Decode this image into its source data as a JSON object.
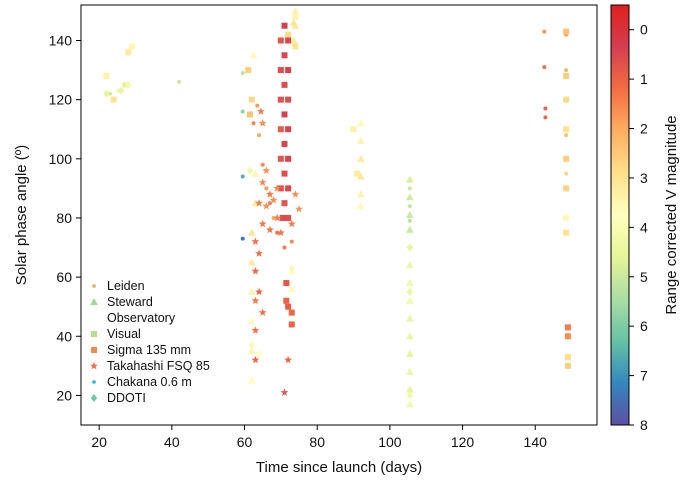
{
  "chart_data": {
    "type": "scatter",
    "xlabel": "Time since launch (days)",
    "ylabel": "Solar phase angle (º)",
    "xlim": [
      15,
      157
    ],
    "ylim": [
      10,
      152
    ],
    "xticks": [
      "20",
      "40",
      "60",
      "80",
      "100",
      "120",
      "140"
    ],
    "yticks": [
      "20",
      "40",
      "60",
      "80",
      "100",
      "120",
      "140"
    ],
    "grid": false,
    "legend_position": "lower-left",
    "colorbar": {
      "label": "Range corrected V magnitude",
      "ticks": [
        "0",
        "1",
        "2",
        "3",
        "4",
        "5",
        "6",
        "7",
        "8"
      ],
      "range": [
        -0.5,
        8
      ],
      "reversed": true,
      "colormap": "Spectral"
    },
    "series": [
      {
        "name": "Leiden",
        "marker": "dot",
        "points": [
          [
            62.5,
            112,
            1.5
          ],
          [
            63.5,
            118,
            1.8
          ],
          [
            64,
            108,
            2
          ],
          [
            65,
            98,
            1.6
          ],
          [
            66,
            90,
            1.8
          ],
          [
            67,
            85,
            1.5
          ],
          [
            68,
            80,
            2
          ],
          [
            69,
            75,
            1.2
          ],
          [
            71,
            70,
            1.4
          ],
          [
            73,
            72,
            1.6
          ],
          [
            142.5,
            143,
            1.7
          ],
          [
            142.5,
            131,
            1.2
          ],
          [
            142.8,
            117,
            1.0
          ],
          [
            142.8,
            114,
            1.1
          ],
          [
            148.5,
            142,
            1.8
          ],
          [
            148.5,
            130,
            2.2
          ],
          [
            148.5,
            108,
            2.4
          ],
          [
            148.5,
            95,
            2.7
          ]
        ]
      },
      {
        "name": "Steward\nObservatory",
        "marker": "triangle",
        "points": [
          [
            62,
            25,
            3.8
          ],
          [
            62,
            35,
            3.5
          ],
          [
            62,
            45,
            3.6
          ],
          [
            62,
            55,
            3.4
          ],
          [
            62,
            65,
            3.2
          ],
          [
            62,
            75,
            3.0
          ],
          [
            62.5,
            135,
            3.6
          ],
          [
            63,
            85,
            3.2
          ],
          [
            63,
            95,
            3.5
          ],
          [
            73.5,
            140,
            3.2
          ],
          [
            73.5,
            146,
            3.0
          ],
          [
            74,
            150,
            3.4
          ],
          [
            74,
            145,
            3.1
          ],
          [
            92,
            112,
            3.6
          ],
          [
            92,
            106,
            3.4
          ],
          [
            92,
            100,
            3.2
          ],
          [
            92,
            94,
            3.1
          ],
          [
            92,
            88,
            3.4
          ],
          [
            92,
            84,
            3.6
          ],
          [
            105.5,
            64,
            4.4
          ],
          [
            105.5,
            58,
            4.2
          ],
          [
            105.5,
            52,
            4.3
          ],
          [
            105.5,
            46,
            4.5
          ],
          [
            105.5,
            40,
            4.4
          ],
          [
            105.5,
            34,
            4.6
          ],
          [
            105.5,
            28,
            4.5
          ],
          [
            105.5,
            22,
            4.6
          ],
          [
            105.5,
            17,
            4.2
          ],
          [
            105.5,
            93,
            4.8
          ],
          [
            105.5,
            87,
            4.9
          ],
          [
            105.5,
            81,
            5.0
          ],
          [
            105.5,
            76,
            5.0
          ],
          [
            73,
            56,
            3.9
          ],
          [
            73,
            62,
            3.8
          ]
        ]
      },
      {
        "name": "Visual",
        "marker": "square",
        "points": [
          [
            22,
            128,
            3.4
          ],
          [
            24,
            120,
            3.0
          ],
          [
            27,
            125,
            3.6
          ],
          [
            28,
            136,
            3.2
          ],
          [
            29,
            138,
            3.5
          ],
          [
            61,
            130,
            2.6
          ],
          [
            62,
            120,
            2.8
          ],
          [
            61.5,
            115,
            2.4
          ],
          [
            148.5,
            143,
            2.4
          ],
          [
            148.5,
            128,
            2.6
          ],
          [
            148.5,
            120,
            2.8
          ],
          [
            148.5,
            110,
            3.0
          ],
          [
            148.5,
            100,
            2.6
          ],
          [
            148.5,
            90,
            2.7
          ],
          [
            148.5,
            80,
            3.6
          ],
          [
            148.5,
            75,
            3.0
          ],
          [
            149,
            30,
            2.6
          ],
          [
            149,
            33,
            2.9
          ],
          [
            90,
            110,
            3.4
          ],
          [
            91,
            95,
            3.2
          ],
          [
            74,
            148,
            3.4
          ],
          [
            74,
            138,
            3.0
          ],
          [
            72,
            142,
            2.8
          ]
        ]
      },
      {
        "name": "Sigma 135 mm",
        "marker": "square",
        "points": [
          [
            70,
            140,
            0.8
          ],
          [
            70,
            130,
            0.6
          ],
          [
            70,
            120,
            0.7
          ],
          [
            70,
            110,
            0.9
          ],
          [
            70,
            100,
            0.8
          ],
          [
            70,
            90,
            0.7
          ],
          [
            70.5,
            80,
            0.6
          ],
          [
            71,
            145,
            0.4
          ],
          [
            71,
            135,
            0.5
          ],
          [
            71,
            125,
            0.6
          ],
          [
            71,
            115,
            0.4
          ],
          [
            71,
            105,
            0.5
          ],
          [
            71,
            95,
            0.6
          ],
          [
            71,
            85,
            0.7
          ],
          [
            72,
            140,
            0.5
          ],
          [
            72,
            130,
            0.4
          ],
          [
            72,
            120,
            0.6
          ],
          [
            72,
            110,
            0.5
          ],
          [
            72,
            100,
            0.4
          ],
          [
            72,
            90,
            0.5
          ],
          [
            72,
            80,
            0.6
          ],
          [
            71.5,
            58,
            0.8
          ],
          [
            71.5,
            52,
            1.0
          ],
          [
            72,
            50,
            0.9
          ],
          [
            73,
            44,
            1.0
          ],
          [
            73,
            48,
            1.1
          ],
          [
            149,
            43,
            1.4
          ],
          [
            149,
            40,
            1.6
          ]
        ]
      },
      {
        "name": "Takahashi FSQ 85",
        "marker": "star",
        "points": [
          [
            63,
            72,
            1.2
          ],
          [
            63,
            62,
            1.1
          ],
          [
            63,
            52,
            1.3
          ],
          [
            63,
            42,
            1.2
          ],
          [
            63,
            32,
            1.0
          ],
          [
            64,
            85,
            1.4
          ],
          [
            64,
            68,
            1.2
          ],
          [
            64,
            55,
            1.1
          ],
          [
            65,
            92,
            1.5
          ],
          [
            65,
            78,
            1.3
          ],
          [
            65,
            48,
            1.2
          ],
          [
            66,
            96,
            1.7
          ],
          [
            66,
            84,
            1.6
          ],
          [
            67,
            88,
            1.4
          ],
          [
            67,
            76,
            1.3
          ],
          [
            68,
            86,
            1.6
          ],
          [
            69,
            90,
            1.5
          ],
          [
            69,
            80,
            1.4
          ],
          [
            70,
            75,
            1.3
          ],
          [
            71,
            21,
            0.8
          ],
          [
            72,
            32,
            1.0
          ],
          [
            73,
            78,
            1.4
          ],
          [
            74,
            88,
            1.6
          ],
          [
            75,
            83,
            1.7
          ],
          [
            64.5,
            116,
            1.4
          ],
          [
            65,
            112,
            1.6
          ]
        ]
      },
      {
        "name": "Chakana 0.6 m",
        "marker": "dot",
        "points": [
          [
            23,
            122,
            4.9
          ],
          [
            25.5,
            123,
            4.7
          ],
          [
            27,
            125,
            4.8
          ],
          [
            42,
            126,
            5.0
          ],
          [
            59.5,
            129,
            5.2
          ],
          [
            59.5,
            116,
            5.8
          ],
          [
            59.5,
            94,
            6.6
          ],
          [
            59.5,
            73,
            7.4
          ],
          [
            105.5,
            90,
            5.0
          ],
          [
            105.5,
            84,
            5.1
          ],
          [
            105.5,
            79,
            5.2
          ]
        ]
      },
      {
        "name": "DDOTI",
        "marker": "diamond",
        "points": [
          [
            22,
            122,
            4.6
          ],
          [
            26,
            123,
            4.4
          ],
          [
            28,
            125,
            4.2
          ],
          [
            61.5,
            96,
            4.3
          ],
          [
            62,
            37,
            4.0
          ],
          [
            64,
            34,
            3.8
          ],
          [
            73,
            63,
            4.1
          ],
          [
            105.5,
            20,
            4.2
          ],
          [
            105.5,
            55,
            4.4
          ],
          [
            105.5,
            70,
            4.6
          ]
        ]
      }
    ]
  }
}
